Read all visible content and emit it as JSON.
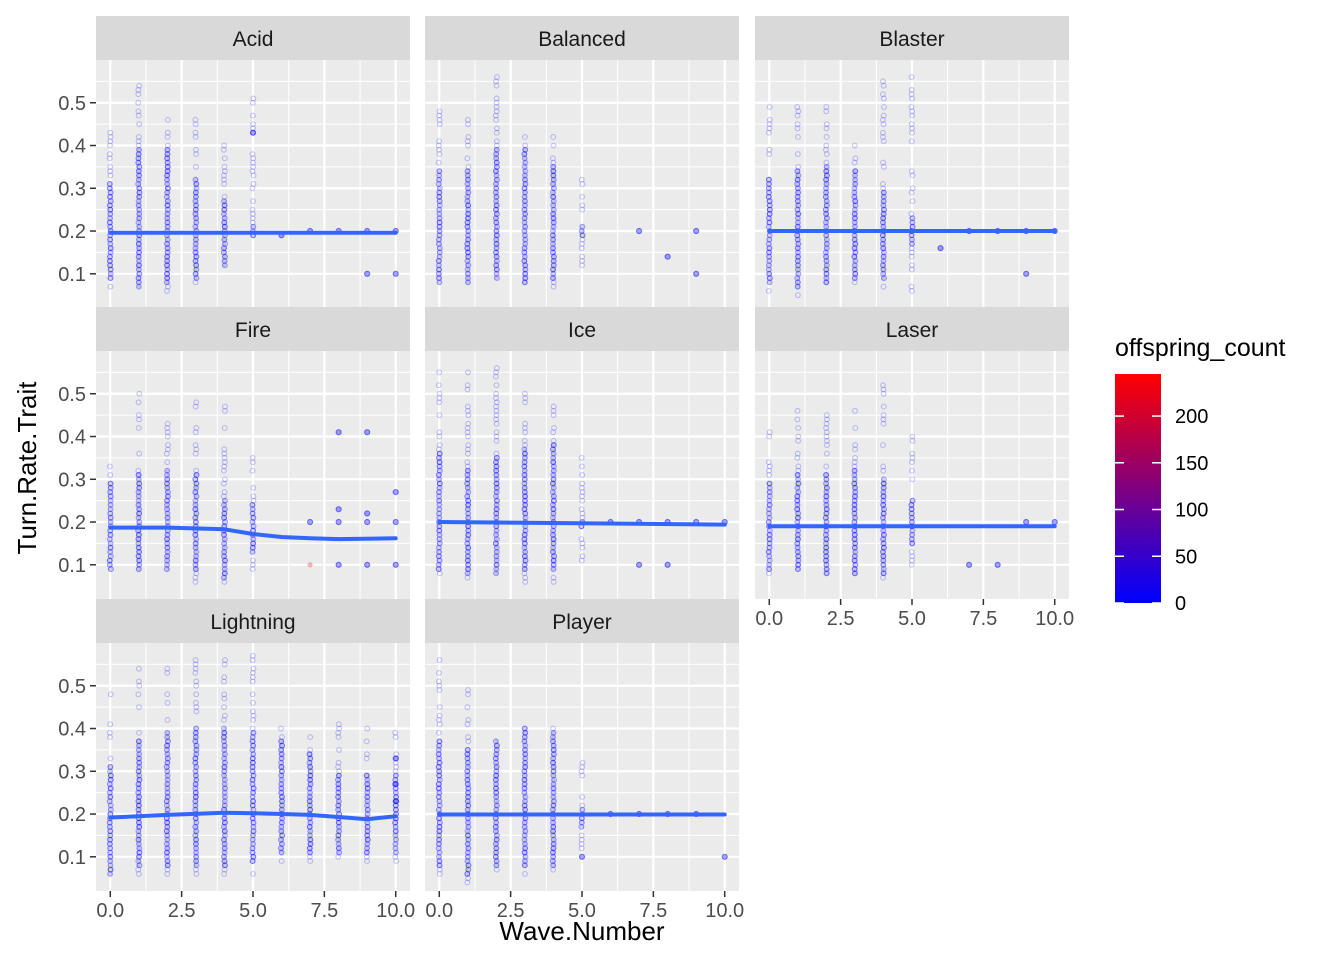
{
  "chart_data": {
    "type": "scatter",
    "title": "",
    "xlabel": "Wave.Number",
    "ylabel": "Turn.Rate.Trait",
    "xlim": [
      -0.5,
      10.5
    ],
    "ylim": [
      0.02,
      0.6
    ],
    "x_ticks": [
      0,
      2.5,
      5,
      7.5,
      10
    ],
    "x_tick_labels": [
      "0.0",
      "2.5",
      "5.0",
      "7.5",
      "10.0"
    ],
    "y_ticks": [
      0.1,
      0.2,
      0.3,
      0.4,
      0.5
    ],
    "y_tick_labels": [
      "0.1",
      "0.2",
      "0.3",
      "0.4",
      "0.5"
    ],
    "grid": true,
    "legend": {
      "title": "offspring_count",
      "position": "right",
      "type": "colorbar",
      "range": [
        0,
        245
      ],
      "ticks": [
        0,
        50,
        100,
        150,
        200
      ],
      "tick_labels": [
        "0",
        "50",
        "100",
        "150",
        "200"
      ],
      "low_color": "#0000FF",
      "high_color": "#FF0000"
    },
    "colors": {
      "panel_bg": "#EBEBEB",
      "strip_bg": "#D9D9D9",
      "grid": "#FFFFFF",
      "smooth_line": "#3366FF",
      "points": "#0000FF"
    },
    "panels": [
      {
        "name": "Acid",
        "columns": [
          {
            "x": 0,
            "min": 0.06,
            "max": 0.44,
            "band": [
              0.08,
              0.32
            ]
          },
          {
            "x": 1,
            "min": 0.05,
            "max": 0.56,
            "band": [
              0.07,
              0.4
            ]
          },
          {
            "x": 2,
            "min": 0.06,
            "max": 0.46,
            "band": [
              0.07,
              0.4
            ]
          },
          {
            "x": 3,
            "min": 0.08,
            "max": 0.54,
            "band": [
              0.09,
              0.33
            ]
          },
          {
            "x": 4,
            "min": 0.1,
            "max": 0.4,
            "band": [
              0.12,
              0.28
            ]
          },
          {
            "x": 5,
            "min": 0.18,
            "max": 0.54,
            "band": [
              0.19,
              0.22
            ]
          }
        ],
        "extra_points": [
          [
            5,
            0.43
          ],
          [
            6,
            0.19
          ],
          [
            7,
            0.2
          ],
          [
            8,
            0.2
          ],
          [
            9,
            0.2
          ],
          [
            9,
            0.1
          ],
          [
            10,
            0.2
          ],
          [
            10,
            0.1
          ]
        ],
        "smooth": [
          [
            0,
            0.196
          ],
          [
            10,
            0.196
          ]
        ]
      },
      {
        "name": "Balanced",
        "columns": [
          {
            "x": 0,
            "min": 0.07,
            "max": 0.48,
            "band": [
              0.08,
              0.35
            ]
          },
          {
            "x": 1,
            "min": 0.07,
            "max": 0.46,
            "band": [
              0.08,
              0.35
            ]
          },
          {
            "x": 2,
            "min": 0.06,
            "max": 0.56,
            "band": [
              0.08,
              0.4
            ]
          },
          {
            "x": 3,
            "min": 0.07,
            "max": 0.43,
            "band": [
              0.08,
              0.4
            ]
          },
          {
            "x": 4,
            "min": 0.07,
            "max": 0.43,
            "band": [
              0.09,
              0.36
            ]
          },
          {
            "x": 5,
            "min": 0.12,
            "max": 0.32,
            "band": [
              0.19,
              0.22
            ]
          }
        ],
        "extra_points": [
          [
            7,
            0.2
          ],
          [
            8,
            0.14
          ],
          [
            9,
            0.2
          ],
          [
            9,
            0.1
          ]
        ],
        "smooth": []
      },
      {
        "name": "Blaster",
        "columns": [
          {
            "x": 0,
            "min": 0.06,
            "max": 0.5,
            "band": [
              0.07,
              0.33
            ]
          },
          {
            "x": 1,
            "min": 0.05,
            "max": 0.5,
            "band": [
              0.07,
              0.35
            ]
          },
          {
            "x": 2,
            "min": 0.06,
            "max": 0.5,
            "band": [
              0.07,
              0.36
            ]
          },
          {
            "x": 3,
            "min": 0.06,
            "max": 0.4,
            "band": [
              0.08,
              0.35
            ]
          },
          {
            "x": 4,
            "min": 0.07,
            "max": 0.56,
            "band": [
              0.09,
              0.3
            ]
          },
          {
            "x": 5,
            "min": 0.06,
            "max": 0.56,
            "band": [
              0.17,
              0.24
            ]
          }
        ],
        "extra_points": [
          [
            6,
            0.16
          ],
          [
            7,
            0.2
          ],
          [
            8,
            0.2
          ],
          [
            9,
            0.2
          ],
          [
            9,
            0.1
          ],
          [
            10,
            0.2
          ]
        ],
        "smooth": [
          [
            0,
            0.2
          ],
          [
            10,
            0.2
          ]
        ]
      },
      {
        "name": "Fire",
        "columns": [
          {
            "x": 0,
            "min": 0.08,
            "max": 0.37,
            "band": [
              0.09,
              0.3
            ]
          },
          {
            "x": 1,
            "min": 0.08,
            "max": 0.5,
            "band": [
              0.09,
              0.32
            ]
          },
          {
            "x": 2,
            "min": 0.06,
            "max": 0.43,
            "band": [
              0.08,
              0.33
            ]
          },
          {
            "x": 3,
            "min": 0.06,
            "max": 0.49,
            "band": [
              0.08,
              0.32
            ]
          },
          {
            "x": 4,
            "min": 0.04,
            "max": 0.49,
            "band": [
              0.07,
              0.26
            ]
          },
          {
            "x": 5,
            "min": 0.09,
            "max": 0.4,
            "band": [
              0.12,
              0.25
            ]
          }
        ],
        "extra_points": [
          [
            7,
            0.2
          ],
          [
            8,
            0.23
          ],
          [
            8,
            0.2
          ],
          [
            8,
            0.1
          ],
          [
            8,
            0.41
          ],
          [
            9,
            0.2
          ],
          [
            9,
            0.1
          ],
          [
            9,
            0.41
          ],
          [
            9,
            0.22
          ],
          [
            10,
            0.2
          ],
          [
            10,
            0.1
          ],
          [
            10,
            0.27
          ]
        ],
        "highlight_points": [
          [
            7,
            0.1,
            230
          ]
        ],
        "smooth": [
          [
            0,
            0.187
          ],
          [
            2,
            0.187
          ],
          [
            4,
            0.183
          ],
          [
            5,
            0.172
          ],
          [
            6,
            0.165
          ],
          [
            7,
            0.162
          ],
          [
            8,
            0.16
          ],
          [
            10,
            0.162
          ]
        ]
      },
      {
        "name": "Ice",
        "columns": [
          {
            "x": 0,
            "min": 0.08,
            "max": 0.56,
            "band": [
              0.09,
              0.37
            ]
          },
          {
            "x": 1,
            "min": 0.07,
            "max": 0.56,
            "band": [
              0.08,
              0.33
            ]
          },
          {
            "x": 2,
            "min": 0.07,
            "max": 0.56,
            "band": [
              0.08,
              0.36
            ]
          },
          {
            "x": 3,
            "min": 0.06,
            "max": 0.56,
            "band": [
              0.08,
              0.38
            ]
          },
          {
            "x": 4,
            "min": 0.06,
            "max": 0.48,
            "band": [
              0.08,
              0.39
            ]
          },
          {
            "x": 5,
            "min": 0.1,
            "max": 0.35,
            "band": [
              0.19,
              0.21
            ]
          }
        ],
        "extra_points": [
          [
            6,
            0.2
          ],
          [
            7,
            0.2
          ],
          [
            7,
            0.1
          ],
          [
            8,
            0.2
          ],
          [
            8,
            0.1
          ],
          [
            9,
            0.2
          ],
          [
            10,
            0.2
          ]
        ],
        "smooth": [
          [
            0,
            0.2
          ],
          [
            5,
            0.197
          ],
          [
            10,
            0.194
          ]
        ]
      },
      {
        "name": "Laser",
        "columns": [
          {
            "x": 0,
            "min": 0.08,
            "max": 0.41,
            "band": [
              0.09,
              0.3
            ]
          },
          {
            "x": 1,
            "min": 0.08,
            "max": 0.46,
            "band": [
              0.09,
              0.32
            ]
          },
          {
            "x": 2,
            "min": 0.07,
            "max": 0.49,
            "band": [
              0.08,
              0.32
            ]
          },
          {
            "x": 3,
            "min": 0.07,
            "max": 0.47,
            "band": [
              0.08,
              0.33
            ]
          },
          {
            "x": 4,
            "min": 0.07,
            "max": 0.54,
            "band": [
              0.08,
              0.31
            ]
          },
          {
            "x": 5,
            "min": 0.1,
            "max": 0.4,
            "band": [
              0.15,
              0.26
            ]
          }
        ],
        "extra_points": [
          [
            7,
            0.1
          ],
          [
            8,
            0.1
          ],
          [
            9,
            0.2
          ],
          [
            10,
            0.2
          ]
        ],
        "smooth": [
          [
            0,
            0.19
          ],
          [
            10,
            0.19
          ]
        ]
      },
      {
        "name": "Lightning",
        "columns": [
          {
            "x": 0,
            "min": 0.04,
            "max": 0.48,
            "band": [
              0.06,
              0.32
            ]
          },
          {
            "x": 1,
            "min": 0.06,
            "max": 0.54,
            "band": [
              0.07,
              0.38
            ]
          },
          {
            "x": 2,
            "min": 0.06,
            "max": 0.54,
            "band": [
              0.07,
              0.4
            ]
          },
          {
            "x": 3,
            "min": 0.06,
            "max": 0.56,
            "band": [
              0.07,
              0.41
            ]
          },
          {
            "x": 4,
            "min": 0.06,
            "max": 0.56,
            "band": [
              0.07,
              0.41
            ]
          },
          {
            "x": 5,
            "min": 0.06,
            "max": 0.57,
            "band": [
              0.08,
              0.4
            ]
          },
          {
            "x": 6,
            "min": 0.09,
            "max": 0.4,
            "band": [
              0.1,
              0.38
            ]
          },
          {
            "x": 7,
            "min": 0.09,
            "max": 0.38,
            "band": [
              0.1,
              0.35
            ]
          },
          {
            "x": 8,
            "min": 0.09,
            "max": 0.42,
            "band": [
              0.1,
              0.3
            ]
          },
          {
            "x": 9,
            "min": 0.09,
            "max": 0.4,
            "band": [
              0.1,
              0.3
            ]
          },
          {
            "x": 10,
            "min": 0.09,
            "max": 0.4,
            "band": [
              0.1,
              0.3
            ]
          }
        ],
        "extra_points": [
          [
            10,
            0.33
          ],
          [
            10,
            0.27
          ],
          [
            10,
            0.23
          ]
        ],
        "smooth": [
          [
            0,
            0.192
          ],
          [
            2,
            0.198
          ],
          [
            4,
            0.203
          ],
          [
            5,
            0.202
          ],
          [
            6,
            0.2
          ],
          [
            7,
            0.198
          ],
          [
            8,
            0.193
          ],
          [
            9,
            0.188
          ],
          [
            10,
            0.195
          ]
        ]
      },
      {
        "name": "Player",
        "columns": [
          {
            "x": 0,
            "min": 0.06,
            "max": 0.56,
            "band": [
              0.07,
              0.38
            ]
          },
          {
            "x": 1,
            "min": 0.04,
            "max": 0.49,
            "band": [
              0.06,
              0.36
            ]
          },
          {
            "x": 2,
            "min": 0.06,
            "max": 0.38,
            "band": [
              0.07,
              0.38
            ]
          },
          {
            "x": 3,
            "min": 0.06,
            "max": 0.4,
            "band": [
              0.07,
              0.41
            ]
          },
          {
            "x": 4,
            "min": 0.07,
            "max": 0.4,
            "band": [
              0.08,
              0.4
            ]
          },
          {
            "x": 5,
            "min": 0.1,
            "max": 0.32,
            "band": [
              0.17,
              0.22
            ]
          }
        ],
        "extra_points": [
          [
            5,
            0.1
          ],
          [
            6,
            0.2
          ],
          [
            7,
            0.2
          ],
          [
            8,
            0.2
          ],
          [
            9,
            0.2
          ],
          [
            10,
            0.1
          ]
        ],
        "smooth": [
          [
            0,
            0.199
          ],
          [
            10,
            0.199
          ]
        ]
      }
    ]
  }
}
